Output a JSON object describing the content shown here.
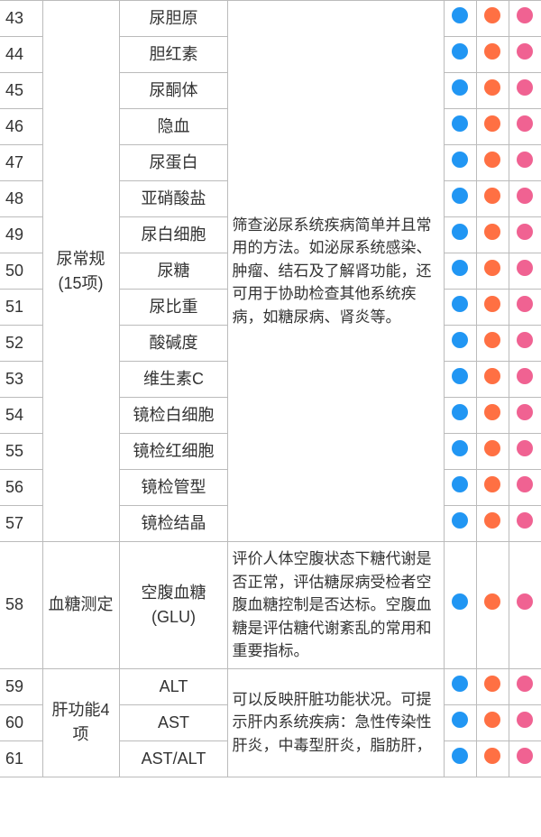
{
  "colors": {
    "blue": "#2196f3",
    "orange": "#ff7043",
    "pink": "#f06292",
    "border": "#bbbbbb",
    "text": "#333333",
    "background": "#ffffff"
  },
  "columns": {
    "num_width": 42,
    "cat_width": 76,
    "item_width": 108,
    "desc_width": 214,
    "dot_width": 32
  },
  "typography": {
    "body_fontsize": 18,
    "desc_fontsize": 17,
    "line_height": 1.5
  },
  "groups": [
    {
      "category": "尿常规(15项)",
      "description": "筛查泌尿系统疾病简单并且常用的方法。如泌尿系统感染、肿瘤、结石及了解肾功能，还可用于协助检查其他系统疾病，如糖尿病、肾炎等。",
      "rows": [
        {
          "num": "43",
          "item": "尿胆原",
          "dots": [
            true,
            true,
            true
          ]
        },
        {
          "num": "44",
          "item": "胆红素",
          "dots": [
            true,
            true,
            true
          ]
        },
        {
          "num": "45",
          "item": "尿酮体",
          "dots": [
            true,
            true,
            true
          ]
        },
        {
          "num": "46",
          "item": "隐血",
          "dots": [
            true,
            true,
            true
          ]
        },
        {
          "num": "47",
          "item": "尿蛋白",
          "dots": [
            true,
            true,
            true
          ]
        },
        {
          "num": "48",
          "item": "亚硝酸盐",
          "dots": [
            true,
            true,
            true
          ]
        },
        {
          "num": "49",
          "item": "尿白细胞",
          "dots": [
            true,
            true,
            true
          ]
        },
        {
          "num": "50",
          "item": "尿糖",
          "dots": [
            true,
            true,
            true
          ]
        },
        {
          "num": "51",
          "item": "尿比重",
          "dots": [
            true,
            true,
            true
          ]
        },
        {
          "num": "52",
          "item": "酸碱度",
          "dots": [
            true,
            true,
            true
          ]
        },
        {
          "num": "53",
          "item": "维生素C",
          "dots": [
            true,
            true,
            true
          ]
        },
        {
          "num": "54",
          "item": "镜检白细胞",
          "dots": [
            true,
            true,
            true
          ]
        },
        {
          "num": "55",
          "item": "镜检红细胞",
          "dots": [
            true,
            true,
            true
          ]
        },
        {
          "num": "56",
          "item": "镜检管型",
          "dots": [
            true,
            true,
            true
          ]
        },
        {
          "num": "57",
          "item": "镜检结晶",
          "dots": [
            true,
            true,
            true
          ]
        }
      ]
    },
    {
      "category": "血糖测定",
      "description": "评价人体空腹状态下糖代谢是否正常，评估糖尿病受检者空腹血糖控制是否达标。空腹血糖是评估糖代谢紊乱的常用和重要指标。",
      "rows": [
        {
          "num": "58",
          "item": "空腹血糖(GLU)",
          "dots": [
            true,
            true,
            true
          ]
        }
      ]
    },
    {
      "category": "肝功能4项",
      "description": "可以反映肝脏功能状况。可提示肝内系统疾病：急性传染性肝炎，中毒型肝炎，脂肪肝，",
      "rows": [
        {
          "num": "59",
          "item": "ALT",
          "dots": [
            true,
            true,
            true
          ]
        },
        {
          "num": "60",
          "item": "AST",
          "dots": [
            true,
            true,
            true
          ]
        },
        {
          "num": "61",
          "item": "AST/ALT",
          "dots": [
            true,
            true,
            true
          ]
        }
      ]
    }
  ]
}
